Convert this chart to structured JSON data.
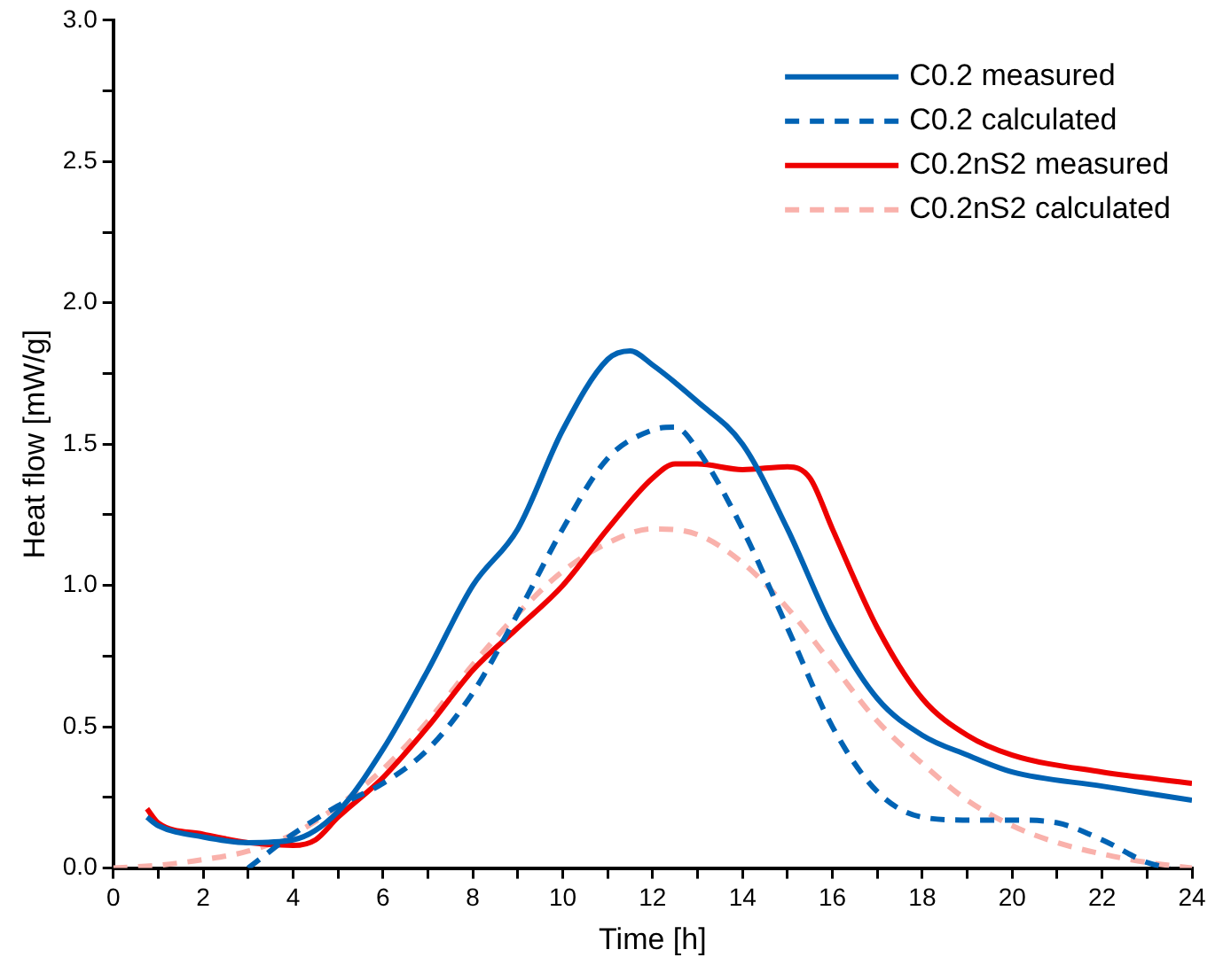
{
  "chart_data": {
    "type": "line",
    "xlabel": "Time [h]",
    "ylabel": "Heat flow [mW/g]",
    "xlim": [
      0,
      24
    ],
    "ylim": [
      0,
      3
    ],
    "xticks": [
      0,
      {
        "value": 1,
        "label": null
      },
      2,
      {
        "value": 3,
        "label": null
      },
      4,
      {
        "value": 5,
        "label": null
      },
      6,
      {
        "value": 7,
        "label": null
      },
      8,
      {
        "value": 9,
        "label": null
      },
      10,
      {
        "value": 11,
        "label": null
      },
      12,
      {
        "value": 13,
        "label": null
      },
      14,
      {
        "value": 15,
        "label": null
      },
      16,
      {
        "value": 17,
        "label": null
      },
      18,
      {
        "value": 19,
        "label": null
      },
      20,
      {
        "value": 21,
        "label": null
      },
      22,
      {
        "value": 23,
        "label": null
      },
      24
    ],
    "yticks": [
      {
        "value": 0,
        "label": "0.0"
      },
      {
        "value": 0.25,
        "label": null
      },
      {
        "value": 0.5,
        "label": "0.5"
      },
      {
        "value": 0.75,
        "label": null
      },
      {
        "value": 1,
        "label": "1.0"
      },
      {
        "value": 1.25,
        "label": null
      },
      {
        "value": 1.5,
        "label": "1.5"
      },
      {
        "value": 1.75,
        "label": null
      },
      {
        "value": 2,
        "label": "2.0"
      },
      {
        "value": 2.25,
        "label": null
      },
      {
        "value": 2.5,
        "label": "2.5"
      },
      {
        "value": 2.75,
        "label": null
      },
      {
        "value": 3,
        "label": "3.0"
      }
    ],
    "grid": false,
    "legend": "top right",
    "marker": "none",
    "series": [
      {
        "name": "C0.2 measured",
        "color": "#0063b4",
        "line_style": "solid",
        "x": [
          0.75,
          1,
          2,
          3,
          4,
          5,
          6,
          7,
          8,
          9,
          10,
          11,
          11.5,
          12,
          13,
          14,
          15,
          16,
          17,
          18,
          19,
          20,
          22,
          24
        ],
        "values": [
          0.18,
          0.15,
          0.11,
          0.09,
          0.1,
          0.2,
          0.42,
          0.7,
          1.0,
          1.2,
          1.55,
          1.8,
          1.83,
          1.78,
          1.65,
          1.5,
          1.2,
          0.85,
          0.6,
          0.47,
          0.4,
          0.34,
          0.29,
          0.24
        ]
      },
      {
        "name": "C0.2 calculated",
        "color": "#0063b4",
        "line_style": "dashed",
        "x": [
          3,
          4,
          5,
          6,
          7,
          8,
          9,
          10,
          11,
          12,
          12.5,
          13,
          14,
          15,
          16,
          17,
          18,
          19,
          20,
          21,
          22,
          23,
          23.5
        ],
        "values": [
          0,
          0.12,
          0.22,
          0.3,
          0.42,
          0.62,
          0.9,
          1.2,
          1.45,
          1.55,
          1.56,
          1.48,
          1.2,
          0.85,
          0.5,
          0.27,
          0.18,
          0.17,
          0.17,
          0.16,
          0.1,
          0.02,
          0
        ]
      },
      {
        "name": "C0.2nS2 measured",
        "color": "#ee0000",
        "line_style": "solid",
        "x": [
          0.75,
          1,
          2,
          3,
          4,
          4.5,
          5,
          6,
          7,
          8,
          9,
          10,
          11,
          12,
          12.5,
          13,
          14,
          15,
          15.5,
          16,
          17,
          18,
          19,
          20,
          22,
          24
        ],
        "values": [
          0.21,
          0.16,
          0.12,
          0.09,
          0.08,
          0.1,
          0.18,
          0.32,
          0.5,
          0.7,
          0.85,
          1.0,
          1.2,
          1.38,
          1.43,
          1.43,
          1.41,
          1.42,
          1.38,
          1.2,
          0.85,
          0.6,
          0.47,
          0.4,
          0.34,
          0.3
        ]
      },
      {
        "name": "C0.2nS2 calculated",
        "color": "#f9b1ab",
        "line_style": "dashed",
        "x": [
          0,
          1,
          2,
          3,
          4,
          5,
          6,
          7,
          8,
          9,
          10,
          11,
          12,
          13,
          14,
          15,
          16,
          17,
          18,
          19,
          20,
          21,
          22,
          23,
          24
        ],
        "values": [
          0,
          0.01,
          0.03,
          0.06,
          0.12,
          0.22,
          0.35,
          0.52,
          0.72,
          0.9,
          1.05,
          1.15,
          1.2,
          1.18,
          1.08,
          0.92,
          0.72,
          0.52,
          0.37,
          0.24,
          0.15,
          0.09,
          0.05,
          0.02,
          0
        ]
      }
    ]
  }
}
